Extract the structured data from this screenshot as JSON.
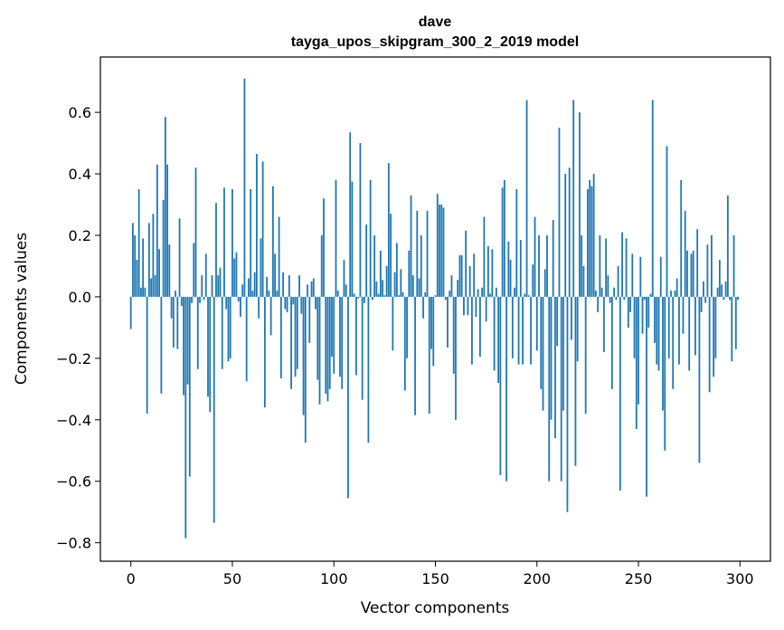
{
  "chart_data": {
    "type": "bar",
    "title_line1": "dave",
    "title_line2": "tayga_upos_skipgram_300_2_2019 model",
    "xlabel": "Vector components",
    "ylabel": "Components values",
    "xlim": [
      -15,
      315
    ],
    "ylim": [
      -0.86,
      0.78
    ],
    "xticks": [
      0,
      50,
      100,
      150,
      200,
      250,
      300
    ],
    "xtick_labels": [
      "0",
      "50",
      "100",
      "150",
      "200",
      "250",
      "300"
    ],
    "yticks": [
      -0.8,
      -0.6,
      -0.4,
      -0.2,
      0.0,
      0.2,
      0.4,
      0.6
    ],
    "ytick_labels": [
      "−0.8",
      "−0.6",
      "−0.4",
      "−0.2",
      "0.0",
      "0.2",
      "0.4",
      "0.6"
    ],
    "bar_color": "#1f77b4",
    "values": [
      -0.105,
      0.24,
      0.2,
      0.12,
      0.35,
      0.03,
      0.19,
      0.03,
      -0.38,
      0.24,
      0.06,
      0.27,
      0.07,
      0.43,
      0.155,
      -0.315,
      0.315,
      0.585,
      0.43,
      0.17,
      -0.07,
      -0.165,
      0.02,
      -0.17,
      0.255,
      -0.03,
      -0.32,
      -0.785,
      -0.285,
      -0.585,
      -0.02,
      0.175,
      0.42,
      -0.235,
      -0.02,
      0.07,
      -0.01,
      0.14,
      -0.325,
      -0.375,
      0.07,
      -0.735,
      0.305,
      0.07,
      0.095,
      -0.235,
      0.355,
      -0.04,
      -0.21,
      -0.2,
      0.35,
      0.125,
      0.145,
      -0.015,
      -0.065,
      0.04,
      0.71,
      -0.275,
      0.06,
      0.35,
      0.02,
      0.08,
      0.465,
      -0.07,
      0.19,
      0.44,
      -0.36,
      0.065,
      0.02,
      -0.125,
      0.36,
      0.14,
      0.02,
      0.26,
      -0.265,
      0.08,
      -0.04,
      -0.05,
      0.07,
      -0.3,
      -0.025,
      -0.26,
      -0.235,
      0.07,
      -0.055,
      -0.385,
      -0.475,
      0.04,
      -0.15,
      0.05,
      0.06,
      -0.04,
      -0.27,
      -0.35,
      0.2,
      0.32,
      -0.315,
      -0.34,
      -0.3,
      -0.195,
      -0.25,
      0.38,
      0.02,
      -0.26,
      -0.3,
      0.12,
      0.04,
      -0.655,
      0.535,
      0.375,
      0.01,
      -0.255,
      -0.005,
      0.5,
      -0.335,
      -0.02,
      0.235,
      -0.475,
      0.38,
      -0.01,
      0.2,
      0.05,
      0.01,
      0.15,
      0.055,
      0.005,
      0.1,
      0.435,
      0.27,
      -0.175,
      0.08,
      0.175,
      0.005,
      0.09,
      0.015,
      -0.305,
      -0.2,
      0.15,
      0.33,
      0.07,
      -0.385,
      0.28,
      0.06,
      0.2,
      -0.07,
      0.015,
      0.28,
      -0.38,
      -0.17,
      -0.225,
      0.005,
      0.335,
      0.3,
      0.3,
      0.29,
      -0.01,
      -0.165,
      0.02,
      0.07,
      -0.25,
      -0.4,
      0.055,
      0.135,
      0.135,
      -0.06,
      0.215,
      -0.06,
      0.1,
      -0.22,
      0.14,
      -0.065,
      0.025,
      -0.195,
      0.03,
      0.26,
      -0.08,
      0.165,
      0.01,
      0.155,
      -0.24,
      0.03,
      -0.28,
      -0.58,
      0.355,
      0.38,
      -0.6,
      0.18,
      0.12,
      -0.2,
      0.03,
      0.35,
      -0.22,
      0.185,
      -0.22,
      0.01,
      0.64,
      0.005,
      -0.22,
      0.105,
      0.26,
      -0.175,
      0.2,
      -0.3,
      -0.37,
      0.09,
      0.2,
      -0.6,
      -0.4,
      0.25,
      -0.46,
      -0.16,
      0.55,
      -0.6,
      -0.37,
      0.4,
      -0.7,
      0.42,
      -0.14,
      0.64,
      -0.55,
      -0.21,
      0.6,
      0.2,
      0.1,
      -0.38,
      0.35,
      0.38,
      0.36,
      0.4,
      0.02,
      -0.05,
      0.2,
      0.03,
      -0.18,
      0.19,
      0.07,
      -0.02,
      -0.3,
      0.03,
      -0.01,
      0.1,
      -0.63,
      0.21,
      -0.01,
      0.19,
      -0.1,
      -0.05,
      0.14,
      -0.2,
      -0.43,
      -0.35,
      0.13,
      -0.12,
      -0.01,
      -0.65,
      -0.1,
      0.01,
      0.64,
      -0.15,
      -0.22,
      -0.24,
      0.13,
      -0.37,
      -0.5,
      0.49,
      -0.2,
      0.02,
      -0.3,
      0.02,
      0.06,
      -0.22,
      0.38,
      -0.12,
      0.28,
      0.15,
      -0.24,
      0.14,
      0.15,
      -0.19,
      0.22,
      -0.54,
      -0.05,
      0.05,
      -0.02,
      0.17,
      -0.31,
      0.2,
      -0.26,
      -0.2,
      0.03,
      0.12,
      0.04,
      -0.01,
      0.05,
      0.33,
      -0.01,
      -0.21,
      0.2,
      -0.17,
      -0.01
    ]
  }
}
